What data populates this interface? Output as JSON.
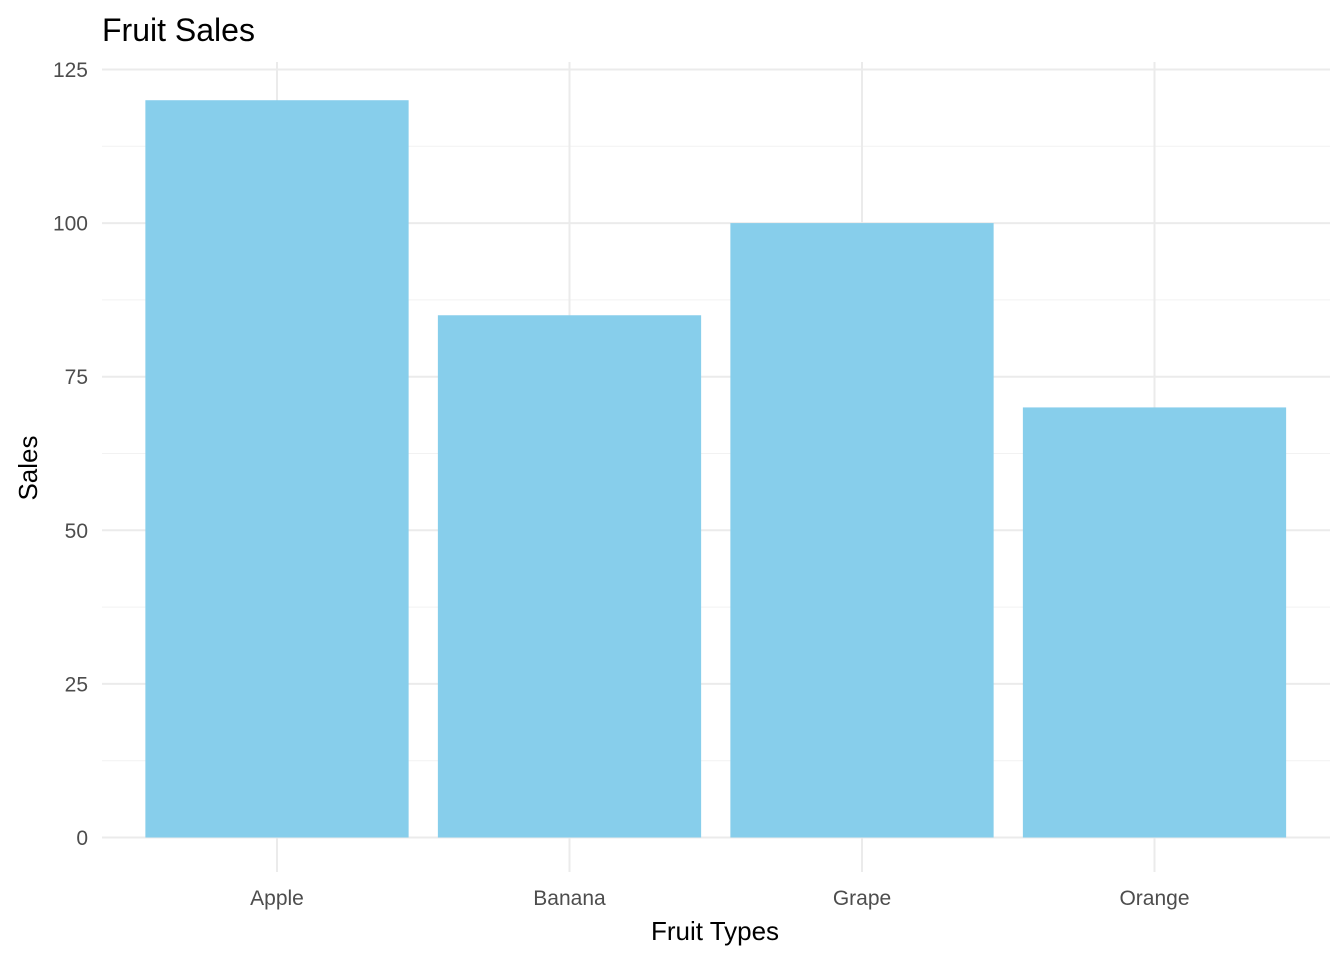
{
  "chart_data": {
    "type": "bar",
    "title": "Fruit Sales",
    "xlabel": "Fruit Types",
    "ylabel": "Sales",
    "categories": [
      "Apple",
      "Banana",
      "Grape",
      "Orange"
    ],
    "values": [
      120,
      85,
      100,
      70
    ],
    "ylim": [
      0,
      125
    ],
    "yticks": [
      0,
      25,
      50,
      75,
      100,
      125
    ],
    "grid": true,
    "legend": "none",
    "bar_color": "#87CEEB"
  }
}
